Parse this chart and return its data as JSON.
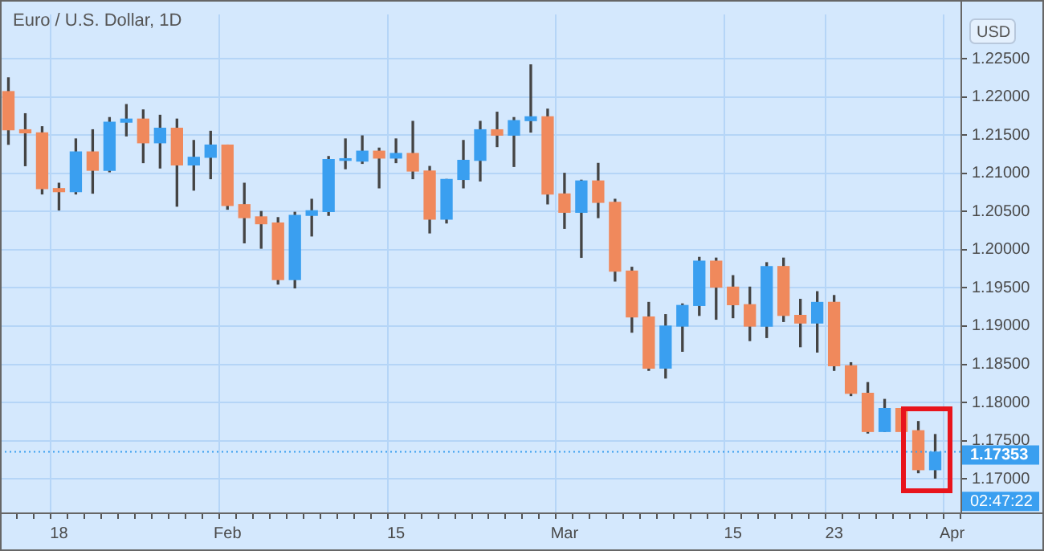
{
  "chart_data": {
    "type": "candlestick",
    "title": "Euro / U.S. Dollar, 1D",
    "categories": [
      null,
      null,
      null,
      "18",
      null,
      null,
      null,
      null,
      null,
      null,
      null,
      null,
      null,
      "Feb",
      null,
      null,
      null,
      null,
      null,
      null,
      null,
      null,
      null,
      "15",
      null,
      null,
      null,
      null,
      null,
      null,
      null,
      null,
      null,
      "Mar",
      null,
      null,
      null,
      null,
      null,
      null,
      null,
      null,
      null,
      "15",
      null,
      null,
      null,
      null,
      null,
      "23",
      null,
      null,
      null,
      null,
      null,
      null,
      "Apr"
    ],
    "ohlc": [
      [
        1.2207,
        1.2225,
        1.2138,
        1.2157
      ],
      [
        1.2157,
        1.2178,
        1.211,
        1.2153
      ],
      [
        1.2153,
        1.2161,
        1.2073,
        1.208
      ],
      [
        1.208,
        1.2087,
        1.2052,
        1.2076
      ],
      [
        1.2076,
        1.2145,
        1.2073,
        1.2128
      ],
      [
        1.2128,
        1.2157,
        1.2074,
        1.2104
      ],
      [
        1.2104,
        1.2173,
        1.2102,
        1.2167
      ],
      [
        1.2167,
        1.219,
        1.2149,
        1.2171
      ],
      [
        1.2171,
        1.2183,
        1.2114,
        1.214
      ],
      [
        1.214,
        1.2176,
        1.2107,
        1.2159
      ],
      [
        1.2159,
        1.2171,
        1.2057,
        1.2111
      ],
      [
        1.2111,
        1.2143,
        1.2078,
        1.2121
      ],
      [
        1.2121,
        1.2155,
        1.2093,
        1.2137
      ],
      [
        1.2137,
        1.2137,
        1.2053,
        1.2058
      ],
      [
        1.2059,
        1.2087,
        1.2009,
        1.2042
      ],
      [
        1.2043,
        1.205,
        1.2002,
        1.2034
      ],
      [
        1.2035,
        1.2042,
        1.1955,
        1.1961
      ],
      [
        1.1961,
        1.2049,
        1.195,
        1.2045
      ],
      [
        1.2045,
        1.2066,
        1.2018,
        1.2051
      ],
      [
        1.205,
        1.2122,
        1.2045,
        1.2118
      ],
      [
        1.2117,
        1.2145,
        1.2106,
        1.2118
      ],
      [
        1.2116,
        1.2149,
        1.2113,
        1.2129
      ],
      [
        1.2129,
        1.2133,
        1.2081,
        1.212
      ],
      [
        1.212,
        1.2145,
        1.2114,
        1.2126
      ],
      [
        1.2126,
        1.2168,
        1.2093,
        1.2103
      ],
      [
        1.2103,
        1.2109,
        1.2022,
        1.204
      ],
      [
        1.204,
        1.2092,
        1.2035,
        1.2092
      ],
      [
        1.2092,
        1.2143,
        1.2081,
        1.2117
      ],
      [
        1.2117,
        1.2168,
        1.209,
        1.2157
      ],
      [
        1.2157,
        1.218,
        1.2135,
        1.215
      ],
      [
        1.215,
        1.2173,
        1.2109,
        1.2169
      ],
      [
        1.2169,
        1.2242,
        1.2154,
        1.2174
      ],
      [
        1.2174,
        1.2184,
        1.206,
        1.2073
      ],
      [
        1.2073,
        1.21,
        1.2028,
        1.2049
      ],
      [
        1.2049,
        1.2091,
        1.199,
        1.209
      ],
      [
        1.209,
        1.2113,
        1.2042,
        1.2062
      ],
      [
        1.2062,
        1.2066,
        1.1959,
        1.1972
      ],
      [
        1.1972,
        1.1977,
        1.1892,
        1.1912
      ],
      [
        1.1912,
        1.1931,
        1.1842,
        1.1845
      ],
      [
        1.1845,
        1.1915,
        1.1832,
        1.19
      ],
      [
        1.19,
        1.1929,
        1.1867,
        1.1927
      ],
      [
        1.1927,
        1.199,
        1.1914,
        1.1985
      ],
      [
        1.1985,
        1.1989,
        1.1909,
        1.1951
      ],
      [
        1.1951,
        1.1966,
        1.1911,
        1.1928
      ],
      [
        1.1928,
        1.1951,
        1.1881,
        1.19
      ],
      [
        1.19,
        1.1983,
        1.1885,
        1.1978
      ],
      [
        1.1978,
        1.1989,
        1.1906,
        1.1914
      ],
      [
        1.1914,
        1.1935,
        1.1873,
        1.1904
      ],
      [
        1.1904,
        1.1945,
        1.1866,
        1.1931
      ],
      [
        1.1931,
        1.194,
        1.1842,
        1.1848
      ],
      [
        1.1848,
        1.1852,
        1.1809,
        1.1812
      ],
      [
        1.1812,
        1.1826,
        1.176,
        1.1762
      ],
      [
        1.1762,
        1.1804,
        1.1762,
        1.1792
      ],
      [
        1.1792,
        1.1792,
        1.1762,
        1.1762
      ],
      [
        1.1763,
        1.1775,
        1.1708,
        1.1712
      ],
      [
        1.1712,
        1.1758,
        1.1701,
        1.1735
      ],
      null
    ],
    "colors": [
      "#f0895c",
      "#f0895c",
      "#f0895c",
      "#f0895c",
      "#3a9ff0",
      "#f0895c",
      "#3a9ff0",
      "#3a9ff0",
      "#f0895c",
      "#3a9ff0",
      "#f0895c",
      "#3a9ff0",
      "#3a9ff0",
      "#f0895c",
      "#f0895c",
      "#f0895c",
      "#f0895c",
      "#3a9ff0",
      "#3a9ff0",
      "#3a9ff0",
      "#3a9ff0",
      "#3a9ff0",
      "#f0895c",
      "#3a9ff0",
      "#f0895c",
      "#f0895c",
      "#3a9ff0",
      "#3a9ff0",
      "#3a9ff0",
      "#f0895c",
      "#3a9ff0",
      "#3a9ff0",
      "#f0895c",
      "#f0895c",
      "#3a9ff0",
      "#f0895c",
      "#f0895c",
      "#f0895c",
      "#f0895c",
      "#3a9ff0",
      "#3a9ff0",
      "#3a9ff0",
      "#f0895c",
      "#f0895c",
      "#f0895c",
      "#3a9ff0",
      "#f0895c",
      "#f0895c",
      "#3a9ff0",
      "#f0895c",
      "#f0895c",
      "#f0895c",
      "#3a9ff0",
      "#f0895c",
      "#f0895c",
      "#3a9ff0",
      null
    ],
    "ylim": [
      1.1656,
      1.2308
    ],
    "yticks": [
      {
        "value": 1.17,
        "label": "1.17000"
      },
      {
        "value": 1.175,
        "label": "1.17500"
      },
      {
        "value": 1.18,
        "label": "1.18000"
      },
      {
        "value": 1.185,
        "label": "1.18500"
      },
      {
        "value": 1.19,
        "label": "1.19000"
      },
      {
        "value": 1.195,
        "label": "1.19500"
      },
      {
        "value": 1.2,
        "label": "1.20000"
      },
      {
        "value": 1.205,
        "label": "1.20500"
      },
      {
        "value": 1.21,
        "label": "1.21000"
      },
      {
        "value": 1.215,
        "label": "1.21500"
      },
      {
        "value": 1.22,
        "label": "1.22000"
      },
      {
        "value": 1.225,
        "label": "1.22500"
      }
    ],
    "grid": true,
    "legend": false,
    "ref_lines": [
      {
        "axis": "y",
        "value": 1.17353,
        "label": "1.17353",
        "color": "#3a9ff0",
        "line_style": "dotted"
      }
    ],
    "annotations": [
      "USD",
      "02:47:22"
    ]
  }
}
